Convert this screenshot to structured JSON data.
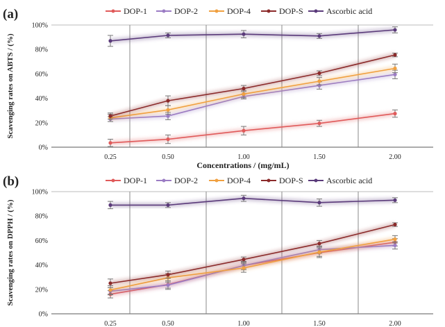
{
  "chart_data": [
    {
      "type": "line",
      "panel": "(a)",
      "categories": [
        "0.25",
        "0.50",
        "1.00",
        "1.50",
        "2.00"
      ],
      "ylabel": "Scavenging rates on ABTS  / (%)",
      "xlabel": "Concentrations / (mg/mL)",
      "ylim": [
        0,
        100
      ],
      "yticks": [
        "0%",
        "20%",
        "40%",
        "60%",
        "80%",
        "100%"
      ],
      "series": [
        {
          "name": "DOP-1",
          "color": "#e05a5a",
          "values": [
            3.5,
            6.5,
            13.5,
            19.5,
            27.5
          ],
          "errors": [
            3,
            3.5,
            3.5,
            2.5,
            3
          ]
        },
        {
          "name": "DOP-2",
          "color": "#9b7cc4",
          "values": [
            23,
            25.5,
            41.5,
            50.5,
            59.5
          ],
          "errors": [
            2,
            3,
            2,
            3,
            3.5
          ]
        },
        {
          "name": "DOP-4",
          "color": "#f0a040",
          "values": [
            24,
            30.5,
            43.5,
            54,
            64.5
          ],
          "errors": [
            3,
            3.5,
            3,
            3,
            3.5
          ]
        },
        {
          "name": "DOP-S",
          "color": "#8b2a2a",
          "values": [
            25.5,
            38,
            48,
            60.5,
            75.5
          ],
          "errors": [
            2.5,
            4,
            2.5,
            2,
            1.5
          ]
        },
        {
          "name": "Ascorbic acid",
          "color": "#5a3a7a",
          "values": [
            87,
            91.5,
            92.5,
            91,
            96
          ],
          "errors": [
            4.5,
            2,
            3,
            2,
            2.5
          ]
        }
      ]
    },
    {
      "type": "line",
      "panel": "(b)",
      "categories": [
        "0.25",
        "0.50",
        "1.00",
        "1.50",
        "2.00"
      ],
      "ylabel": "Scavenging rates on DPPH  / (%)",
      "xlabel": "",
      "ylim": [
        0,
        100
      ],
      "yticks": [
        "0%",
        "20%",
        "40%",
        "60%",
        "80%",
        "100%"
      ],
      "series": [
        {
          "name": "DOP-1",
          "color": "#e05a5a",
          "values": [
            16,
            24,
            39.5,
            50,
            58.5
          ],
          "errors": [
            3,
            3,
            3.5,
            4,
            3
          ]
        },
        {
          "name": "DOP-2",
          "color": "#9b7cc4",
          "values": [
            18.5,
            23.5,
            39.5,
            52.5,
            56
          ],
          "errors": [
            3,
            3.5,
            2.5,
            3,
            3
          ]
        },
        {
          "name": "DOP-4",
          "color": "#f0a040",
          "values": [
            19.5,
            29.5,
            37.5,
            50.5,
            61
          ],
          "errors": [
            3.5,
            3.5,
            3.5,
            3.5,
            3
          ]
        },
        {
          "name": "DOP-S",
          "color": "#8b2a2a",
          "values": [
            25,
            32,
            44.5,
            57.5,
            73
          ],
          "errors": [
            3.5,
            3,
            2,
            2.5,
            1.5
          ]
        },
        {
          "name": "Ascorbic acid",
          "color": "#5a3a7a",
          "values": [
            89,
            89,
            94.5,
            91,
            93
          ],
          "errors": [
            3,
            2,
            2.5,
            3,
            2
          ]
        }
      ]
    }
  ]
}
